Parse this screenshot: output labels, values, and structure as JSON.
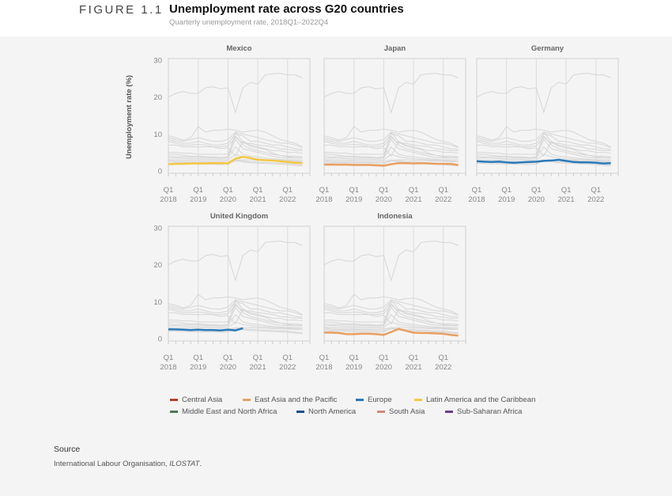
{
  "header": {
    "figure_label": "FIGURE 1.1",
    "title": "Unemployment rate across G20 countries",
    "subtitle": "Quarterly unemployment rate, 2018Q1–2022Q4"
  },
  "chart_data": {
    "type": "line",
    "layout": "small-multiples",
    "ylabel": "Unemployment rate (%)",
    "ylim": [
      0,
      30
    ],
    "yticks": [
      0,
      10,
      20,
      30
    ],
    "xticks": [
      {
        "quarter": "Q1",
        "year": "2018"
      },
      {
        "quarter": "Q1",
        "year": "2019"
      },
      {
        "quarter": "Q1",
        "year": "2020"
      },
      {
        "quarter": "Q1",
        "year": "2021"
      },
      {
        "quarter": "Q1",
        "year": "2022"
      }
    ],
    "x_range": [
      "2018Q1",
      "2022Q4"
    ],
    "grid": "vertical at Q1",
    "background_series_color": "#d6d6d6",
    "background_series": [
      [
        20,
        21,
        21.5,
        21,
        21,
        22.5,
        22.8,
        22.2,
        22.5,
        15.8,
        22.5,
        24,
        23.5,
        26,
        26.3,
        26.4,
        26,
        26,
        25.2
      ],
      [
        9.5,
        9,
        8.3,
        9,
        12,
        10.5,
        11,
        11,
        11.3,
        11,
        10.5,
        10.8,
        11,
        10.5,
        9.5,
        8.5,
        8,
        7.5,
        6.5
      ],
      [
        9,
        8.5,
        8,
        8.5,
        9,
        8.5,
        8,
        8,
        8.5,
        10.5,
        10,
        9.5,
        9,
        8.5,
        8,
        7.5,
        7.5,
        7,
        6.3
      ],
      [
        8.5,
        8,
        7.5,
        7.5,
        8,
        7.5,
        7,
        7,
        7.5,
        10,
        9.5,
        8,
        8,
        7.5,
        7,
        7,
        6.5,
        6,
        5.8
      ],
      [
        8,
        7.5,
        7,
        7,
        7.2,
        7,
        6.5,
        6.5,
        6.8,
        9,
        7.5,
        7.5,
        7,
        6.8,
        6.5,
        6,
        5.8,
        5.5,
        5.5
      ],
      [
        7,
        7,
        6.5,
        6.5,
        6.5,
        6.5,
        6.5,
        6,
        6.3,
        4,
        8,
        7,
        6.5,
        6,
        5.5,
        5.5,
        5,
        5,
        4.8
      ],
      [
        5,
        5,
        4.8,
        4.8,
        4.5,
        4.5,
        4.5,
        4.5,
        4.5,
        9.5,
        7,
        6,
        5.5,
        5,
        4.5,
        4.2,
        4,
        4,
        3.8
      ],
      [
        4.5,
        4.5,
        4.2,
        4,
        4,
        3.8,
        3.8,
        3.6,
        3.8,
        8.5,
        6,
        5.5,
        5,
        4.5,
        4,
        3.6,
        3.5,
        3.5,
        3.5
      ],
      [
        4,
        3.8,
        3.8,
        3.7,
        3.7,
        3.6,
        3.5,
        3.5,
        3.8,
        10.5,
        7.8,
        6.7,
        6.2,
        5.8,
        4.8,
        4.2,
        3.8,
        3.6,
        3.6
      ],
      [
        3.5,
        3.5,
        3.4,
        3.3,
        3.3,
        3.2,
        3.2,
        3.2,
        3.5,
        6.5,
        4.5,
        4,
        3.8,
        3.5,
        3.3,
        3.1,
        3,
        3,
        3
      ],
      [
        3,
        3,
        2.9,
        2.9,
        2.9,
        2.8,
        2.8,
        2.8,
        3,
        4.5,
        3.8,
        3.5,
        3.3,
        3.1,
        3,
        2.9,
        2.8,
        2.7,
        2.6
      ],
      [
        2.8,
        2.6,
        2.5,
        2.5,
        2.5,
        2.4,
        2.4,
        2.4,
        2.6,
        2.9,
        3,
        3,
        2.9,
        2.8,
        2.7,
        2.6,
        2.6,
        2.5,
        2.5
      ],
      [
        2.4,
        2.3,
        2.3,
        2.2,
        2.2,
        2.2,
        2.2,
        2.1,
        2.2,
        2.6,
        2.7,
        2.5,
        2.4,
        2.3,
        2.2,
        2.1,
        2.0,
        1.8,
        1.6
      ],
      [
        2.0,
        2.0,
        1.9,
        1.9,
        1.8,
        1.8,
        1.8,
        1.7,
        1.8,
        3.0,
        2.4,
        2.2,
        2.1,
        2.0,
        1.9,
        1.8,
        1.7,
        1.5,
        1.3
      ]
    ],
    "panels": [
      {
        "title": "Mexico",
        "region": "Latin America and the Caribbean",
        "color": "#f5c842",
        "values": [
          1.8,
          1.9,
          1.9,
          2.0,
          2.0,
          2.0,
          2.1,
          2.1,
          2.0,
          3.3,
          3.8,
          3.5,
          3.0,
          2.9,
          2.8,
          2.6,
          2.4,
          2.2,
          2.1
        ]
      },
      {
        "title": "Japan",
        "region": "East Asia and the Pacific",
        "color": "#e8a060",
        "values": [
          1.7,
          1.7,
          1.7,
          1.7,
          1.6,
          1.6,
          1.6,
          1.5,
          1.4,
          1.8,
          2.1,
          2.1,
          2.0,
          2.1,
          2.0,
          1.9,
          1.9,
          1.9,
          1.6
        ]
      },
      {
        "title": "Germany",
        "region": "Europe",
        "color": "#2a7ab8",
        "values": [
          2.6,
          2.5,
          2.4,
          2.5,
          2.3,
          2.2,
          2.3,
          2.4,
          2.5,
          2.7,
          2.8,
          3.0,
          2.7,
          2.4,
          2.3,
          2.3,
          2.2,
          2.0,
          2.1
        ]
      },
      {
        "title": "United Kingdom",
        "region": "Europe",
        "color": "#2a7ab8",
        "values": [
          2.5,
          2.5,
          2.4,
          2.3,
          2.4,
          2.3,
          2.3,
          2.2,
          2.4,
          2.2,
          2.8
        ]
      },
      {
        "title": "Indonesia",
        "region": "East Asia and the Pacific",
        "color": "#e8a060",
        "values": [
          1.6,
          1.6,
          1.5,
          1.2,
          1.2,
          1.3,
          1.3,
          1.2,
          1.0,
          1.8,
          2.6,
          2.1,
          1.6,
          1.5,
          1.5,
          1.4,
          1.3,
          1.0,
          0.8
        ]
      }
    ],
    "legend_position": "bottom",
    "legend": [
      {
        "name": "Central Asia",
        "color": "#b5412f"
      },
      {
        "name": "East Asia and the Pacific",
        "color": "#e8a060"
      },
      {
        "name": "Europe",
        "color": "#2a7ab8"
      },
      {
        "name": "Latin America and the Caribbean",
        "color": "#f5c842"
      },
      {
        "name": "Middle East and North Africa",
        "color": "#4c7a55"
      },
      {
        "name": "North America",
        "color": "#1f4e8c"
      },
      {
        "name": "South Asia",
        "color": "#d08a78"
      },
      {
        "name": "Sub-Saharan Africa",
        "color": "#6a3d8a"
      }
    ]
  },
  "source": {
    "heading": "Source",
    "text": "International Labour Organisation, ",
    "text_italic": "ILOSTAT",
    "text_end": "."
  }
}
